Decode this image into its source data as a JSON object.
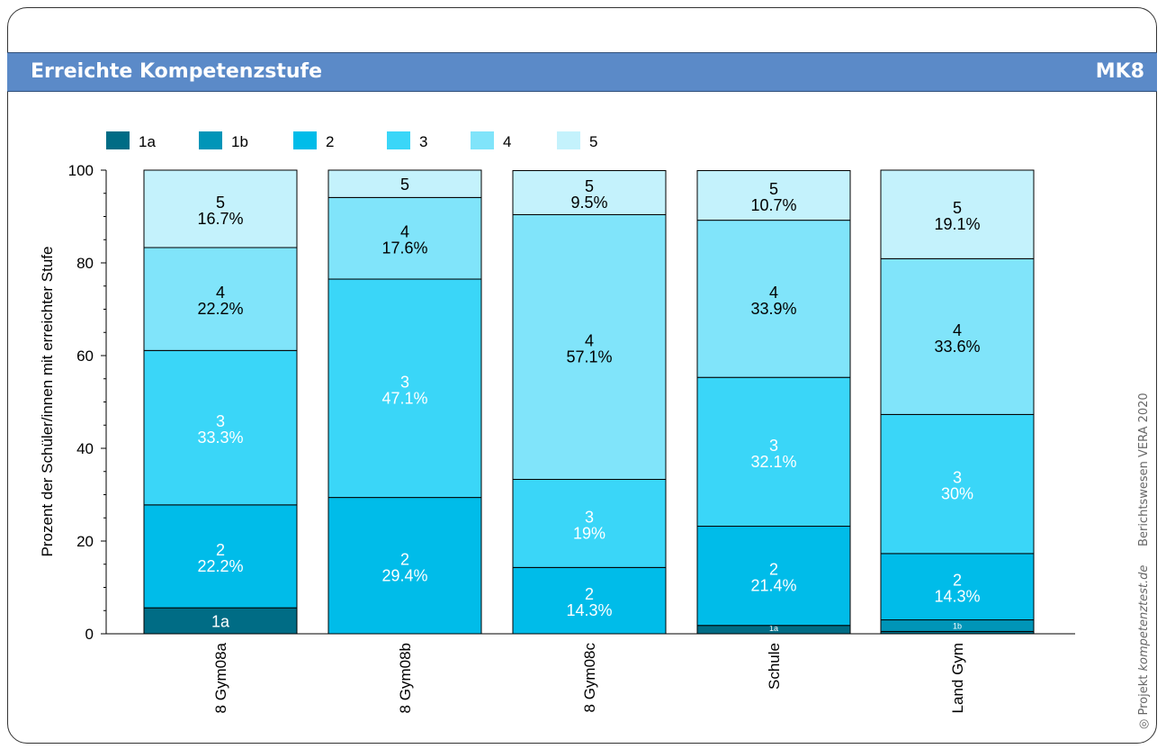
{
  "header": {
    "title": "Erreichte Kompetenzstufe",
    "code": "MK8"
  },
  "footer": {
    "project_prefix": "Projekt",
    "site": "kompetenztest.de",
    "report": "Berichtswesen VERA 2020"
  },
  "colors": {
    "banner": "#5b8ac8",
    "levels": {
      "1a": "#006c85",
      "1b": "#0095b8",
      "2": "#00bce9",
      "3": "#3ad6f8",
      "4": "#80e4fa",
      "5": "#c4f2fc"
    }
  },
  "chart_data": {
    "type": "bar",
    "stacked": true,
    "ylabel": "Prozent der Schüler/innen mit erreichter Stufe",
    "xlabel": "",
    "ylim": [
      0,
      100
    ],
    "yticks": [
      "0",
      "20",
      "40",
      "60",
      "80",
      "100"
    ],
    "legend_position": "top-left",
    "categories": [
      "8 Gym08a",
      "8 Gym08b",
      "8 Gym08c",
      "Schule",
      "Land Gym"
    ],
    "series": [
      {
        "name": "1a",
        "values": [
          5.6,
          0,
          0,
          1.8,
          0.5
        ],
        "labels": [
          "1a",
          "",
          "",
          "1a",
          ""
        ],
        "pct_labels": [
          "",
          "",
          "",
          "",
          ""
        ],
        "label_color": [
          "white",
          "",
          "",
          "white",
          ""
        ]
      },
      {
        "name": "1b",
        "values": [
          0,
          0,
          0,
          0,
          2.5
        ],
        "labels": [
          "",
          "",
          "",
          "",
          "1b"
        ],
        "pct_labels": [
          "",
          "",
          "",
          "",
          ""
        ],
        "label_color": [
          "",
          "",
          "",
          "",
          "white"
        ]
      },
      {
        "name": "2",
        "values": [
          22.2,
          29.4,
          14.3,
          21.4,
          14.3
        ],
        "labels": [
          "2",
          "2",
          "2",
          "2",
          "2"
        ],
        "pct_labels": [
          "22.2%",
          "29.4%",
          "14.3%",
          "21.4%",
          "14.3%"
        ],
        "label_color": [
          "white",
          "white",
          "white",
          "white",
          "white"
        ]
      },
      {
        "name": "3",
        "values": [
          33.3,
          47.1,
          19.0,
          32.1,
          30.0
        ],
        "labels": [
          "3",
          "3",
          "3",
          "3",
          "3"
        ],
        "pct_labels": [
          "33.3%",
          "47.1%",
          "19%",
          "32.1%",
          "30%"
        ],
        "label_color": [
          "white",
          "white",
          "white",
          "white",
          "white"
        ]
      },
      {
        "name": "4",
        "values": [
          22.2,
          17.6,
          57.1,
          33.9,
          33.6
        ],
        "labels": [
          "4",
          "4",
          "4",
          "4",
          "4"
        ],
        "pct_labels": [
          "22.2%",
          "17.6%",
          "57.1%",
          "33.9%",
          "33.6%"
        ],
        "label_color": [
          "black",
          "black",
          "black",
          "black",
          "black"
        ]
      },
      {
        "name": "5",
        "values": [
          16.7,
          5.9,
          9.5,
          10.7,
          19.1
        ],
        "labels": [
          "5",
          "5",
          "5",
          "5",
          "5"
        ],
        "pct_labels": [
          "16.7%",
          "",
          "9.5%",
          "10.7%",
          "19.1%"
        ],
        "label_color": [
          "black",
          "black",
          "black",
          "black",
          "black"
        ]
      }
    ]
  }
}
